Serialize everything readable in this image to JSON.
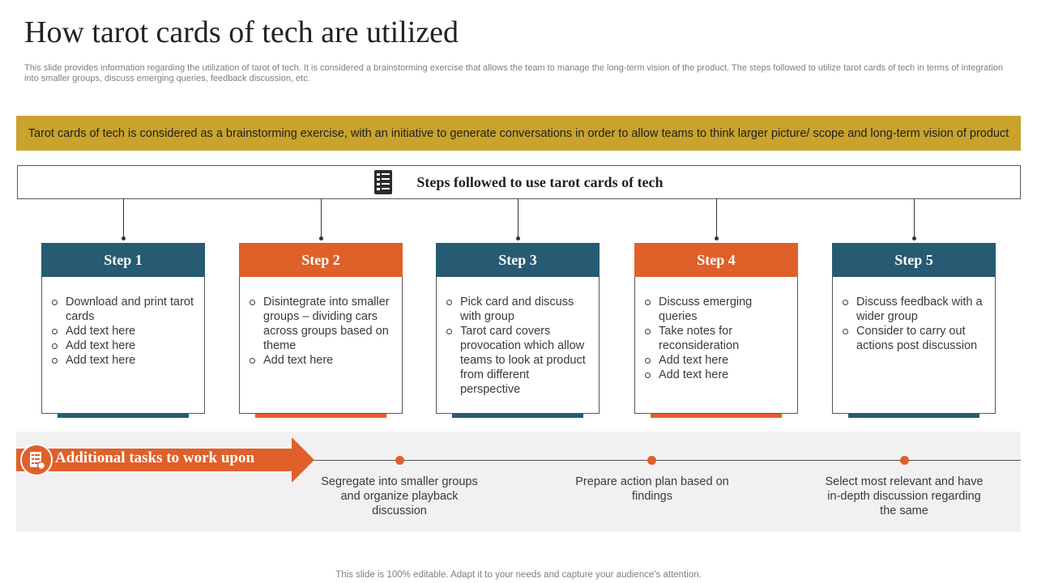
{
  "title": "How tarot cards of tech are utilized",
  "subtitle": "This slide provides information regarding the utilization of tarot of tech. It is considered a brainstorming exercise that allows the team to manage the long-term vision of the product. The steps followed to utilize tarot cards of tech in terms of integration into smaller groups, discuss emerging queries, feedback discussion, etc.",
  "banner": "Tarot cards of tech is considered as a brainstorming exercise, with an initiative to generate conversations in order to allow teams to think larger picture/ scope and long-term vision of product",
  "steps_header": {
    "title": "Steps followed to use tarot cards of tech",
    "icon": "document-checklist-icon"
  },
  "steps": [
    {
      "label": "Step 1",
      "color": "#265b73",
      "items": [
        "Download and print tarot cards",
        "Add text here",
        "Add text here",
        "Add text here"
      ]
    },
    {
      "label": "Step 2",
      "color": "#e0602a",
      "items": [
        "Disintegrate into smaller groups – dividing cars across groups based on theme",
        "Add text here"
      ]
    },
    {
      "label": "Step 3",
      "color": "#265b73",
      "items": [
        "Pick card and discuss with group",
        "Tarot card covers provocation which allow teams to look at product from different perspective"
      ]
    },
    {
      "label": "Step 4",
      "color": "#e0602a",
      "items": [
        "Discuss emerging queries",
        "Take notes for reconsideration",
        "Add text here",
        "Add text here"
      ]
    },
    {
      "label": "Step 5",
      "color": "#265b73",
      "items": [
        "Discuss feedback with a wider group",
        "Consider to carry out actions post discussion"
      ]
    }
  ],
  "additional": {
    "title": "Additional tasks to work upon",
    "icon": "task-list-icon",
    "tasks": [
      "Segregate into smaller groups and organize playback discussion",
      "Prepare action plan based on findings",
      "Select most relevant and have in-depth discussion regarding the same"
    ]
  },
  "footer": "This slide is 100% editable. Adapt it to your needs and capture your audience's attention.",
  "colors": {
    "teal": "#265b73",
    "orange": "#e0602a",
    "gold": "#c9a32c",
    "band": "#f1f1f1"
  }
}
